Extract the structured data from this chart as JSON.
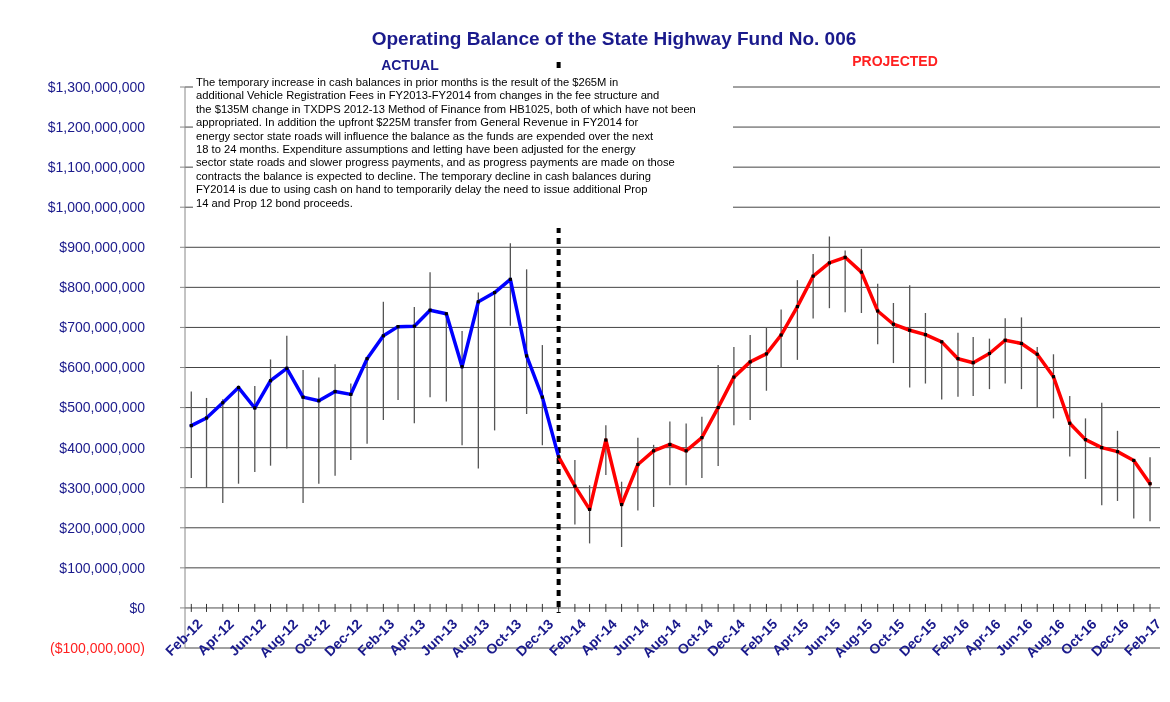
{
  "chart_data": {
    "type": "line",
    "title": "Operating Balance of the State Highway Fund No. 006",
    "x": [
      "2012-02",
      "2012-03",
      "2012-04",
      "2012-05",
      "2012-06",
      "2012-07",
      "2012-08",
      "2012-09",
      "2012-10",
      "2012-11",
      "2012-12",
      "2013-01",
      "2013-02",
      "2013-03",
      "2013-04",
      "2013-05",
      "2013-06",
      "2013-07",
      "2013-08",
      "2013-09",
      "2013-10",
      "2013-11",
      "2013-12",
      "2014-01",
      "2014-02",
      "2014-03",
      "2014-04",
      "2014-05",
      "2014-06",
      "2014-07",
      "2014-08",
      "2014-09",
      "2014-10",
      "2014-11",
      "2014-12",
      "2015-01",
      "2015-02",
      "2015-03",
      "2015-04",
      "2015-05",
      "2015-06",
      "2015-07",
      "2015-08",
      "2015-09",
      "2015-10",
      "2015-11",
      "2015-12",
      "2016-01",
      "2016-02",
      "2016-03",
      "2016-04",
      "2016-05",
      "2016-06",
      "2016-07",
      "2016-08",
      "2016-09",
      "2016-10",
      "2016-11",
      "2016-12",
      "2017-01",
      "2017-02"
    ],
    "series": [
      {
        "color": "#0000ff",
        "values": [
          455000000,
          474000000,
          512000000,
          550000000,
          499000000,
          567000000,
          598000000,
          526000000,
          517000000,
          540000000,
          533000000,
          622000000,
          679000000,
          702000000,
          703000000,
          743000000,
          734000000,
          602000000,
          764000000,
          787000000,
          820000000,
          629000000,
          526000000,
          377000000,
          null,
          null,
          null,
          null,
          null,
          null,
          null,
          null,
          null,
          null,
          null,
          null,
          null,
          null,
          null,
          null,
          null,
          null,
          null,
          null,
          null,
          null,
          null,
          null,
          null,
          null,
          null,
          null,
          null,
          null,
          null,
          null,
          null,
          null,
          null,
          null,
          null
        ],
        "errors": [
          [
            324000000,
            540000000
          ],
          [
            300000000,
            524000000
          ],
          [
            262000000,
            521000000
          ],
          [
            310000000,
            555000000
          ],
          [
            339000000,
            554000000
          ],
          [
            355000000,
            620000000
          ],
          [
            398000000,
            679000000
          ],
          [
            262000000,
            594000000
          ],
          [
            310000000,
            575000000
          ],
          [
            330000000,
            608000000
          ],
          [
            369000000,
            560000000
          ],
          [
            410000000,
            624000000
          ],
          [
            469000000,
            764000000
          ],
          [
            519000000,
            705000000
          ],
          [
            461000000,
            751000000
          ],
          [
            526000000,
            838000000
          ],
          [
            515000000,
            736000000
          ],
          [
            406000000,
            691000000
          ],
          [
            348000000,
            787000000
          ],
          [
            443000000,
            790000000
          ],
          [
            704000000,
            910000000
          ],
          [
            484000000,
            845000000
          ],
          [
            406000000,
            656000000
          ],
          null,
          null,
          null,
          null,
          null,
          null,
          null,
          null,
          null,
          null,
          null,
          null,
          null,
          null,
          null,
          null,
          null,
          null,
          null,
          null,
          null,
          null,
          null,
          null,
          null,
          null,
          null,
          null,
          null,
          null,
          null,
          null,
          null,
          null,
          null,
          null,
          null,
          null
        ]
      },
      {
        "color": "#ff0000",
        "values": [
          null,
          null,
          null,
          null,
          null,
          null,
          null,
          null,
          null,
          null,
          null,
          null,
          null,
          null,
          null,
          null,
          null,
          null,
          null,
          null,
          null,
          null,
          null,
          377000000,
          304000000,
          246000000,
          419000000,
          258000000,
          358000000,
          392000000,
          408000000,
          392000000,
          425000000,
          500000000,
          576000000,
          614000000,
          634000000,
          681000000,
          752000000,
          828000000,
          861000000,
          875000000,
          838000000,
          741000000,
          708000000,
          693000000,
          682000000,
          664000000,
          622000000,
          612000000,
          635000000,
          668000000,
          660000000,
          633000000,
          577000000,
          461000000,
          420000000,
          400000000,
          390000000,
          368000000,
          310000000
        ],
        "errors": [
          null,
          null,
          null,
          null,
          null,
          null,
          null,
          null,
          null,
          null,
          null,
          null,
          null,
          null,
          null,
          null,
          null,
          null,
          null,
          null,
          null,
          null,
          null,
          null,
          [
            208000000,
            369000000
          ],
          [
            161000000,
            306000000
          ],
          [
            332000000,
            456000000
          ],
          [
            152000000,
            315000000
          ],
          [
            243000000,
            425000000
          ],
          [
            252000000,
            407000000
          ],
          [
            306000000,
            465000000
          ],
          [
            306000000,
            460000000
          ],
          [
            324000000,
            477000000
          ],
          [
            354000000,
            606000000
          ],
          [
            456000000,
            651000000
          ],
          [
            469000000,
            681000000
          ],
          [
            542000000,
            701000000
          ],
          [
            600000000,
            745000000
          ],
          [
            619000000,
            818000000
          ],
          [
            722000000,
            883000000
          ],
          [
            748000000,
            927000000
          ],
          [
            738000000,
            892000000
          ],
          [
            736000000,
            896000000
          ],
          [
            658000000,
            809000000
          ],
          [
            611000000,
            761000000
          ],
          [
            550000000,
            805000000
          ],
          [
            560000000,
            736000000
          ],
          [
            520000000,
            664000000
          ],
          [
            527000000,
            687000000
          ],
          [
            529000000,
            676000000
          ],
          [
            546000000,
            672000000
          ],
          [
            560000000,
            723000000
          ],
          [
            546000000,
            725000000
          ],
          [
            500000000,
            651000000
          ],
          [
            473000000,
            633000000
          ],
          [
            378000000,
            529000000
          ],
          [
            322000000,
            473000000
          ],
          [
            256000000,
            512000000
          ],
          [
            267000000,
            442000000
          ],
          [
            223000000,
            368000000
          ],
          [
            216000000,
            376000000
          ]
        ]
      }
    ],
    "xlim": [
      "2012-01-20",
      "2017-02-20"
    ],
    "xticks": [
      {
        "value": "2012-02",
        "label": "Feb-12"
      },
      {
        "value": "2012-03",
        "label": null
      },
      {
        "value": "2012-04",
        "label": "Apr-12"
      },
      {
        "value": "2012-05",
        "label": null
      },
      {
        "value": "2012-06",
        "label": "Jun-12"
      },
      {
        "value": "2012-07",
        "label": null
      },
      {
        "value": "2012-08",
        "label": "Aug-12"
      },
      {
        "value": "2012-09",
        "label": null
      },
      {
        "value": "2012-10",
        "label": "Oct-12"
      },
      {
        "value": "2012-11",
        "label": null
      },
      {
        "value": "2012-12",
        "label": "Dec-12"
      },
      {
        "value": "2013-01",
        "label": null
      },
      {
        "value": "2013-02",
        "label": "Feb-13"
      },
      {
        "value": "2013-03",
        "label": null
      },
      {
        "value": "2013-04",
        "label": "Apr-13"
      },
      {
        "value": "2013-05",
        "label": null
      },
      {
        "value": "2013-06",
        "label": "Jun-13"
      },
      {
        "value": "2013-07",
        "label": null
      },
      {
        "value": "2013-08",
        "label": "Aug-13"
      },
      {
        "value": "2013-09",
        "label": null
      },
      {
        "value": "2013-10",
        "label": "Oct-13"
      },
      {
        "value": "2013-11",
        "label": null
      },
      {
        "value": "2013-12",
        "label": "Dec-13"
      },
      {
        "value": "2014-01",
        "label": null
      },
      {
        "value": "2014-02",
        "label": "Feb-14"
      },
      {
        "value": "2014-03",
        "label": null
      },
      {
        "value": "2014-04",
        "label": "Apr-14"
      },
      {
        "value": "2014-05",
        "label": null
      },
      {
        "value": "2014-06",
        "label": "Jun-14"
      },
      {
        "value": "2014-07",
        "label": null
      },
      {
        "value": "2014-08",
        "label": "Aug-14"
      },
      {
        "value": "2014-09",
        "label": null
      },
      {
        "value": "2014-10",
        "label": "Oct-14"
      },
      {
        "value": "2014-11",
        "label": null
      },
      {
        "value": "2014-12",
        "label": "Dec-14"
      },
      {
        "value": "2015-01",
        "label": null
      },
      {
        "value": "2015-02",
        "label": "Feb-15"
      },
      {
        "value": "2015-03",
        "label": null
      },
      {
        "value": "2015-04",
        "label": "Apr-15"
      },
      {
        "value": "2015-05",
        "label": null
      },
      {
        "value": "2015-06",
        "label": "Jun-15"
      },
      {
        "value": "2015-07",
        "label": null
      },
      {
        "value": "2015-08",
        "label": "Aug-15"
      },
      {
        "value": "2015-09",
        "label": null
      },
      {
        "value": "2015-10",
        "label": "Oct-15"
      },
      {
        "value": "2015-11",
        "label": null
      },
      {
        "value": "2015-12",
        "label": "Dec-15"
      },
      {
        "value": "2016-01",
        "label": null
      },
      {
        "value": "2016-02",
        "label": "Feb-16"
      },
      {
        "value": "2016-03",
        "label": null
      },
      {
        "value": "2016-04",
        "label": "Apr-16"
      },
      {
        "value": "2016-05",
        "label": null
      },
      {
        "value": "2016-06",
        "label": "Jun-16"
      },
      {
        "value": "2016-07",
        "label": null
      },
      {
        "value": "2016-08",
        "label": "Aug-16"
      },
      {
        "value": "2016-09",
        "label": null
      },
      {
        "value": "2016-10",
        "label": "Oct-16"
      },
      {
        "value": "2016-11",
        "label": null
      },
      {
        "value": "2016-12",
        "label": "Dec-16"
      },
      {
        "value": "2017-01",
        "label": null
      },
      {
        "value": "2017-02",
        "label": "Feb-17"
      }
    ],
    "ylim": [
      -100000000,
      1300000000
    ],
    "yticks": [
      {
        "value": -100000000,
        "label": "($100,000,000)"
      },
      {
        "value": 0,
        "label": "$0"
      },
      {
        "value": 100000000,
        "label": "$100,000,000"
      },
      {
        "value": 200000000,
        "label": "$200,000,000"
      },
      {
        "value": 300000000,
        "label": "$300,000,000"
      },
      {
        "value": 400000000,
        "label": "$400,000,000"
      },
      {
        "value": 500000000,
        "label": "$500,000,000"
      },
      {
        "value": 600000000,
        "label": "$600,000,000"
      },
      {
        "value": 700000000,
        "label": "$700,000,000"
      },
      {
        "value": 800000000,
        "label": "$800,000,000"
      },
      {
        "value": 900000000,
        "label": "$900,000,000"
      },
      {
        "value": 1000000000,
        "label": "$1,000,000,000"
      },
      {
        "value": 1100000000,
        "label": "$1,100,000,000"
      },
      {
        "value": 1200000000,
        "label": "$1,200,000,000"
      },
      {
        "value": 1300000000,
        "label": "$1,300,000,000"
      }
    ],
    "grid": "y",
    "marker": "square",
    "line_style": "solid",
    "ref_lines": [
      {
        "axis": "x",
        "value": "2014-01",
        "color": "#000000",
        "line_style": "dashed"
      }
    ],
    "annotations": [
      "The temporary increase in cash balances in prior months is the result  of the $265M in additional Vehicle Registration Fees in FY2013-FY2014 from changes in the fee structure and the $135M change in TXDPS 2012-13 Method of Finance from HB1025, both of which have not been appropriated. In addition the upfront $225M transfer from General Revenue in FY2014 for energy sector state roads will influence the balance as the funds are expended over the next 18 to 24 months.  Expenditure assumptions and letting have been adjusted for the energy sector state roads and slower progress payments, and as progress payments are made on those contracts the balance is expected to decline.  The temporary decline in cash balances during FY2014 is due to using cash on hand to temporarily delay the need to issue additional Prop 14 and Prop 12 bond proceeds.",
      "ACTUAL",
      "PROJECTED"
    ]
  }
}
